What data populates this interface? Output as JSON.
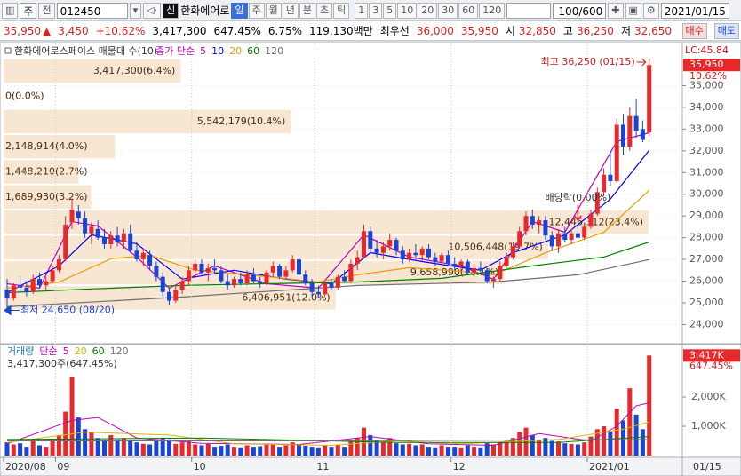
{
  "toolbar": {
    "market": "주",
    "prev": "전",
    "code": "012450",
    "badge": "신",
    "name": "한화에어로",
    "periods": [
      "일",
      "주",
      "월",
      "년",
      "분",
      "초",
      "틱"
    ],
    "intervals": [
      "1",
      "3",
      "5",
      "10",
      "20",
      "30",
      "60",
      "120"
    ],
    "count": "100/600",
    "date": "2021/01/15"
  },
  "info": {
    "price": "35,950",
    "arrow": "▲",
    "change": "3,450",
    "rate": "+10.62%",
    "volume": "3,417,300",
    "vol_ratio": "647.45%",
    "turnover": "6.75%",
    "amount": "119,130백만",
    "best": "최우선",
    "ask": "36,000",
    "bid": "35,950",
    "open_label": "시",
    "open": "32,850",
    "high_label": "고",
    "high": "36,250",
    "low_label": "저",
    "low": "32,650",
    "buy": "매수",
    "sell": "매도"
  },
  "chart_data": [
    {
      "type": "candlestick",
      "title": "한화에어로스페이스 매물대 수(10)",
      "ma_label": "종가 단순",
      "up_color": "#e8282b",
      "down_color": "#1a44d8",
      "ylim": [
        23200,
        36900
      ],
      "yticks": [
        {
          "value": 24000,
          "label": "24,000"
        },
        {
          "value": 25000,
          "label": "25,000"
        },
        {
          "value": 26000,
          "label": "26,000"
        },
        {
          "value": 27000,
          "label": "27,000"
        },
        {
          "value": 28000,
          "label": "28,000"
        },
        {
          "value": 29000,
          "label": "29,000"
        },
        {
          "value": 30000,
          "label": "30,000"
        },
        {
          "value": 31000,
          "label": "31,000"
        },
        {
          "value": 32000,
          "label": "32,000"
        },
        {
          "value": 33000,
          "label": "33,000"
        },
        {
          "value": 34000,
          "label": "34,000"
        },
        {
          "value": 35000,
          "label": "35,000"
        }
      ],
      "ohlc": [
        [
          25600,
          26100,
          24650,
          25200
        ],
        [
          25200,
          25900,
          25100,
          25800
        ],
        [
          25800,
          26200,
          25500,
          25700
        ],
        [
          25700,
          26000,
          25300,
          25500
        ],
        [
          25500,
          26300,
          25400,
          26100
        ],
        [
          26100,
          26400,
          25700,
          25800
        ],
        [
          25800,
          26200,
          25600,
          26000
        ],
        [
          26000,
          26700,
          25900,
          26500
        ],
        [
          26500,
          27200,
          26400,
          27000
        ],
        [
          27000,
          29000,
          26900,
          28600
        ],
        [
          28700,
          29800,
          28400,
          29300
        ],
        [
          29200,
          29500,
          28600,
          28900
        ],
        [
          28900,
          29200,
          28000,
          28200
        ],
        [
          28200,
          28700,
          27700,
          28500
        ],
        [
          28400,
          28800,
          27900,
          28000
        ],
        [
          28000,
          28400,
          27500,
          27700
        ],
        [
          27700,
          28300,
          27500,
          28100
        ],
        [
          28100,
          28500,
          27600,
          27800
        ],
        [
          27800,
          28400,
          27500,
          28200
        ],
        [
          28200,
          28600,
          27300,
          27400
        ],
        [
          27400,
          27800,
          26900,
          27000
        ],
        [
          27000,
          27500,
          26700,
          27300
        ],
        [
          27200,
          27400,
          26500,
          26700
        ],
        [
          26700,
          26900,
          26000,
          26200
        ],
        [
          26200,
          26400,
          25300,
          25500
        ],
        [
          25500,
          25700,
          24900,
          25100
        ],
        [
          25100,
          25800,
          25000,
          25600
        ],
        [
          25600,
          26200,
          25400,
          26000
        ],
        [
          26000,
          26700,
          25800,
          26500
        ],
        [
          26500,
          27000,
          26200,
          26800
        ],
        [
          26800,
          27000,
          26300,
          26400
        ],
        [
          26400,
          26800,
          26000,
          26600
        ],
        [
          26600,
          27000,
          26300,
          26500
        ],
        [
          26500,
          26700,
          25900,
          26000
        ],
        [
          26000,
          26300,
          25600,
          25800
        ],
        [
          25800,
          26200,
          25700,
          26100
        ],
        [
          26100,
          26400,
          25800,
          25900
        ],
        [
          25900,
          26500,
          25800,
          26300
        ],
        [
          26300,
          26600,
          25900,
          26000
        ],
        [
          26000,
          26200,
          25700,
          25900
        ],
        [
          25900,
          26500,
          25800,
          26400
        ],
        [
          26400,
          26900,
          26200,
          26700
        ],
        [
          26700,
          26800,
          26100,
          26200
        ],
        [
          26200,
          26700,
          26100,
          26500
        ],
        [
          26500,
          27200,
          26400,
          27000
        ],
        [
          27000,
          27100,
          26200,
          26300
        ],
        [
          26300,
          26500,
          25800,
          25900
        ],
        [
          25900,
          26100,
          25300,
          25500
        ],
        [
          25500,
          25800,
          25200,
          25400
        ],
        [
          25400,
          26000,
          25300,
          25900
        ],
        [
          25900,
          26100,
          25600,
          25700
        ],
        [
          25700,
          26300,
          25600,
          26200
        ],
        [
          26200,
          26500,
          25900,
          26000
        ],
        [
          26000,
          27000,
          25900,
          26800
        ],
        [
          26800,
          27400,
          26500,
          27100
        ],
        [
          27100,
          28600,
          27000,
          28300
        ],
        [
          28300,
          28500,
          27300,
          27500
        ],
        [
          27500,
          27900,
          27100,
          27300
        ],
        [
          27300,
          27800,
          27000,
          27600
        ],
        [
          27600,
          28200,
          27400,
          27900
        ],
        [
          27900,
          28000,
          27200,
          27400
        ],
        [
          27400,
          27600,
          26800,
          27000
        ],
        [
          27000,
          27500,
          26900,
          27300
        ],
        [
          27300,
          27700,
          27000,
          27200
        ],
        [
          27200,
          27600,
          26900,
          27500
        ],
        [
          27500,
          27700,
          27000,
          27100
        ],
        [
          27100,
          27300,
          26700,
          26900
        ],
        [
          26900,
          27300,
          26800,
          27200
        ],
        [
          27200,
          27400,
          26700,
          26800
        ],
        [
          26800,
          27100,
          26500,
          26700
        ],
        [
          26700,
          27000,
          26400,
          26900
        ],
        [
          26900,
          27000,
          26300,
          26400
        ],
        [
          26400,
          26800,
          26200,
          26600
        ],
        [
          26600,
          26900,
          26300,
          26500
        ],
        [
          26500,
          26600,
          25900,
          26000
        ],
        [
          26000,
          26200,
          25700,
          26100
        ],
        [
          26100,
          26900,
          26000,
          26700
        ],
        [
          26700,
          27300,
          26600,
          27100
        ],
        [
          27100,
          27800,
          27000,
          27600
        ],
        [
          27600,
          28500,
          27500,
          28300
        ],
        [
          28300,
          29200,
          28100,
          29000
        ],
        [
          29000,
          29300,
          28400,
          28600
        ],
        [
          28600,
          29000,
          28200,
          28800
        ],
        [
          28800,
          29000,
          27900,
          28100
        ],
        [
          28100,
          28300,
          27400,
          27600
        ],
        [
          27600,
          28400,
          27300,
          28200
        ],
        [
          28200,
          28500,
          27800,
          27900
        ],
        [
          27900,
          28400,
          27700,
          28200
        ],
        [
          28200,
          28600,
          27900,
          28000
        ],
        [
          28000,
          28700,
          27900,
          28500
        ],
        [
          28500,
          29300,
          28400,
          29100
        ],
        [
          29100,
          30300,
          29000,
          30100
        ],
        [
          30100,
          31200,
          29900,
          30900
        ],
        [
          30900,
          32000,
          30400,
          30600
        ],
        [
          30600,
          33500,
          30500,
          33200
        ],
        [
          33200,
          33700,
          31800,
          32200
        ],
        [
          32200,
          34000,
          32000,
          33600
        ],
        [
          33600,
          34400,
          32600,
          32900
        ],
        [
          33000,
          33400,
          32400,
          32500
        ],
        [
          32850,
          36250,
          32650,
          35950
        ]
      ],
      "ma": [
        {
          "name": "5",
          "color": "#c000c0",
          "x": [
            0,
            5,
            10,
            14,
            20,
            25,
            32,
            40,
            48,
            55,
            62,
            70,
            75,
            81,
            86,
            94,
            99
          ],
          "values": [
            25880,
            25680,
            28740,
            28540,
            27110,
            25680,
            26700,
            25880,
            25680,
            28130,
            27110,
            26700,
            26090,
            28740,
            28250,
            32430,
            32830
          ]
        },
        {
          "name": "10",
          "color": "#0000ff",
          "x": [
            0,
            8,
            13,
            20,
            27,
            35,
            43,
            50,
            56,
            64,
            73,
            78,
            86,
            93,
            99
          ],
          "values": [
            25470,
            26700,
            28130,
            27720,
            26090,
            26500,
            26090,
            25880,
            27310,
            26900,
            26500,
            27310,
            28130,
            29770,
            32020
          ]
        },
        {
          "name": "20",
          "color": "#e8a000",
          "x": [
            0,
            8,
            16,
            22,
            29,
            40,
            48,
            54,
            62,
            70,
            75,
            83,
            92,
            99
          ],
          "values": [
            25680,
            25960,
            27030,
            27190,
            26500,
            26210,
            25960,
            26290,
            26620,
            26450,
            26290,
            27300,
            28250,
            30180
          ]
        },
        {
          "name": "60",
          "color": "#008000",
          "x": [
            0,
            13,
            27,
            40,
            54,
            67,
            81,
            92,
            99
          ],
          "values": [
            25470,
            25640,
            25800,
            25880,
            25960,
            26130,
            26700,
            27110,
            27800
          ]
        },
        {
          "name": "120",
          "color": "#707070",
          "x": [
            0,
            27,
            54,
            75,
            88,
            99
          ],
          "values": [
            24820,
            25270,
            25800,
            25960,
            26290,
            26990
          ]
        }
      ],
      "profile": {
        "color": "#f7e6d2",
        "values": [
          6406951,
          9658990,
          10506448,
          12446312,
          1689930,
          1448210,
          2148914,
          5542179,
          0,
          3417300
        ],
        "labels": [
          "6,406,951(12.0%)",
          "9,658,990(18.1%)",
          "10,506,448(19.7%)",
          "12,446,312(23.4%)",
          "1,689,930(3.2%)",
          "1,448,210(2.7%)",
          "2,148,914(4.0%)",
          "5,542,179(10.4%)",
          "0(0.0%)",
          "3,417,300(6.4%)"
        ]
      },
      "high_label": "최고 36,250 (01/15)",
      "low_label": "최저 24,650 (08/20)",
      "event": {
        "text": "배당락(0.00%)",
        "x": 88
      },
      "lc_label": "LC:45.84",
      "last_price_label": "35,950",
      "change_label": "10.62%"
    },
    {
      "type": "volume",
      "title": "거래량",
      "ma_label": "단순",
      "info_label": "3,417,300주(647.45%)",
      "last_label": "3,417K",
      "ratio_label": "647.45%",
      "ylim": [
        0,
        3730000
      ],
      "yticks": [
        {
          "value": 1000000,
          "label": "1,000K"
        },
        {
          "value": 2000000,
          "label": "2,000K"
        }
      ],
      "values": [
        450000,
        380000,
        420000,
        300000,
        500000,
        350000,
        300000,
        520000,
        700000,
        1500000,
        2700000,
        1300000,
        900000,
        800000,
        600000,
        500000,
        700000,
        550000,
        600000,
        500000,
        450000,
        400000,
        380000,
        500000,
        600000,
        550000,
        400000,
        450000,
        500000,
        380000,
        350000,
        400000,
        300000,
        330000,
        380000,
        300000,
        280000,
        350000,
        300000,
        320000,
        400000,
        380000,
        300000,
        350000,
        450000,
        380000,
        330000,
        300000,
        280000,
        350000,
        300000,
        380000,
        300000,
        500000,
        600000,
        950000,
        700000,
        500000,
        450000,
        600000,
        420000,
        380000,
        400000,
        350000,
        380000,
        300000,
        280000,
        350000,
        300000,
        300000,
        280000,
        350000,
        300000,
        280000,
        420000,
        380000,
        450000,
        500000,
        600000,
        800000,
        950000,
        700000,
        550000,
        600000,
        500000,
        480000,
        420000,
        400000,
        380000,
        450000,
        650000,
        900000,
        1000000,
        800000,
        1600000,
        1200000,
        2300000,
        1400000,
        900000,
        3417300
      ],
      "ma": [
        {
          "name": "5",
          "color": "#c000c0",
          "x": [
            0,
            10,
            14,
            20,
            30,
            45,
            56,
            65,
            75,
            82,
            90,
            94,
            97,
            99
          ],
          "values": [
            400000,
            1200000,
            1300000,
            600000,
            420000,
            380000,
            650000,
            400000,
            350000,
            750000,
            500000,
            1000000,
            1700000,
            1800000
          ]
        },
        {
          "name": "20",
          "color": "#d8b800",
          "x": [
            0,
            12,
            25,
            35,
            50,
            60,
            70,
            85,
            95,
            99
          ],
          "values": [
            450000,
            800000,
            700000,
            400000,
            350000,
            500000,
            400000,
            550000,
            900000,
            1150000
          ]
        },
        {
          "name": "60",
          "color": "#008000",
          "x": [
            0,
            30,
            60,
            85,
            99
          ],
          "values": [
            550000,
            600000,
            450000,
            450000,
            650000
          ]
        },
        {
          "name": "120",
          "color": "#707070",
          "x": [
            0,
            50,
            99
          ],
          "values": [
            500000,
            500000,
            550000
          ]
        }
      ],
      "x_ticks": [
        {
          "value": 0,
          "label": "2020/08"
        },
        {
          "value": 8,
          "label": "09"
        },
        {
          "value": 29,
          "label": "10"
        },
        {
          "value": 48,
          "label": "11"
        },
        {
          "value": 69,
          "label": "12"
        },
        {
          "value": 90,
          "label": "2021/01"
        }
      ],
      "last_date_label": "01/15"
    }
  ]
}
